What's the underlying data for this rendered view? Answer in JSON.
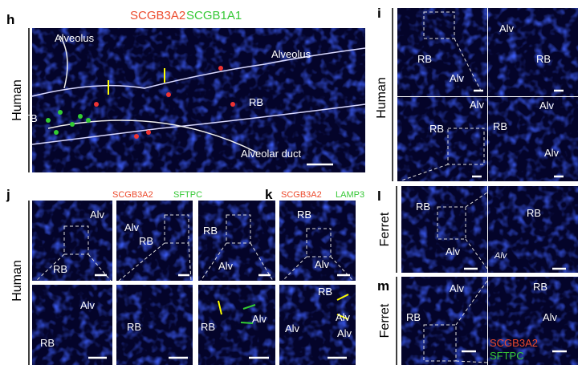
{
  "panels": [
    {
      "letter": "h",
      "stains": [
        "SCGB3A2",
        "SCGB1A1"
      ],
      "species": "Human",
      "labels": [
        "Alveolus",
        "Alveolus",
        "RB",
        "TB",
        "Alveolar duct"
      ]
    },
    {
      "letter": "i",
      "species": "Human",
      "labels": [
        "Alv",
        "RB",
        "RB",
        "Alv",
        "Alv",
        "Alv",
        "RB",
        "RB",
        "Alv"
      ]
    },
    {
      "letter": "j",
      "stains": [
        "SCGB3A2",
        "SFTPC"
      ],
      "species": "Human",
      "labels": [
        "Alv",
        "RB",
        "Alv",
        "RB",
        "RB",
        "Alv",
        "Alv",
        "RB",
        "RB",
        "Alv",
        "RB"
      ]
    },
    {
      "letter": "k",
      "stains": [
        "SCGB3A2",
        "LAMP3"
      ],
      "labels": [
        "RB",
        "Alv",
        "RB",
        "Alv",
        "Alv",
        "Alv"
      ]
    },
    {
      "letter": "l",
      "species": "Ferret",
      "labels": [
        "RB",
        "RB",
        "Alv",
        "Alv"
      ]
    },
    {
      "letter": "m",
      "species": "Ferret",
      "labels": [
        "Alv",
        "RB",
        "RB",
        "Alv"
      ],
      "stains": [
        "SCGB3A2",
        "SFTPC"
      ]
    }
  ]
}
